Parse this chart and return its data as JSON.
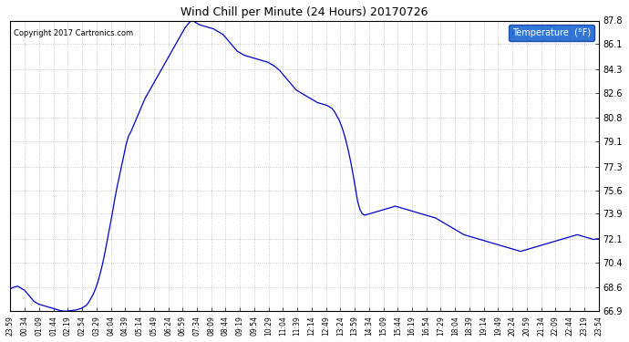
{
  "title": "Wind Chill per Minute (24 Hours) 20170726",
  "copyright_text": "Copyright 2017 Cartronics.com",
  "legend_label": "Temperature  (°F)",
  "line_color": "#0000cc",
  "bg_color": "#ffffff",
  "legend_bg": "#0055cc",
  "legend_fg": "#ffffff",
  "ylim": [
    66.9,
    87.8
  ],
  "yticks": [
    66.9,
    68.6,
    70.4,
    72.1,
    73.9,
    75.6,
    77.3,
    79.1,
    80.8,
    82.6,
    84.3,
    86.1,
    87.8
  ],
  "xtick_labels": [
    "23:59",
    "00:34",
    "01:09",
    "01:44",
    "02:19",
    "02:54",
    "03:29",
    "04:04",
    "04:39",
    "05:14",
    "05:49",
    "06:24",
    "06:59",
    "07:34",
    "08:09",
    "08:44",
    "09:19",
    "09:54",
    "10:29",
    "11:04",
    "11:39",
    "12:14",
    "12:49",
    "13:24",
    "13:59",
    "14:34",
    "15:09",
    "15:44",
    "16:19",
    "16:54",
    "17:29",
    "18:04",
    "18:39",
    "19:14",
    "19:49",
    "20:24",
    "20:59",
    "21:34",
    "22:09",
    "22:44",
    "23:19",
    "23:54"
  ],
  "data_profile": [
    68.5,
    68.6,
    68.65,
    68.7,
    68.6,
    68.5,
    68.4,
    68.2,
    68.0,
    67.8,
    67.6,
    67.5,
    67.4,
    67.35,
    67.3,
    67.25,
    67.2,
    67.15,
    67.1,
    67.05,
    67.0,
    66.95,
    66.92,
    66.9,
    66.91,
    66.93,
    66.95,
    66.97,
    67.0,
    67.05,
    67.1,
    67.2,
    67.3,
    67.5,
    67.8,
    68.1,
    68.5,
    69.0,
    69.6,
    70.3,
    71.1,
    72.0,
    72.9,
    73.8,
    74.8,
    75.7,
    76.5,
    77.3,
    78.1,
    78.9,
    79.5,
    79.8,
    80.2,
    80.6,
    81.0,
    81.4,
    81.8,
    82.2,
    82.5,
    82.8,
    83.1,
    83.4,
    83.7,
    84.0,
    84.3,
    84.6,
    84.9,
    85.2,
    85.5,
    85.8,
    86.1,
    86.4,
    86.7,
    87.0,
    87.3,
    87.5,
    87.7,
    87.8,
    87.7,
    87.6,
    87.5,
    87.45,
    87.4,
    87.35,
    87.3,
    87.25,
    87.2,
    87.1,
    87.0,
    86.9,
    86.8,
    86.6,
    86.4,
    86.2,
    86.0,
    85.8,
    85.6,
    85.5,
    85.4,
    85.3,
    85.25,
    85.2,
    85.15,
    85.1,
    85.05,
    85.0,
    84.95,
    84.9,
    84.85,
    84.8,
    84.7,
    84.6,
    84.5,
    84.35,
    84.2,
    84.0,
    83.8,
    83.6,
    83.4,
    83.2,
    83.0,
    82.8,
    82.7,
    82.6,
    82.5,
    82.4,
    82.3,
    82.2,
    82.1,
    82.0,
    81.9,
    81.85,
    81.8,
    81.75,
    81.7,
    81.6,
    81.5,
    81.3,
    81.0,
    80.7,
    80.3,
    79.8,
    79.2,
    78.5,
    77.7,
    76.8,
    75.8,
    74.8,
    74.2,
    73.9,
    73.8,
    73.85,
    73.9,
    73.95,
    74.0,
    74.05,
    74.1,
    74.15,
    74.2,
    74.25,
    74.3,
    74.35,
    74.4,
    74.45,
    74.4,
    74.35,
    74.3,
    74.25,
    74.2,
    74.15,
    74.1,
    74.05,
    74.0,
    73.95,
    73.9,
    73.85,
    73.8,
    73.75,
    73.7,
    73.65,
    73.6,
    73.5,
    73.4,
    73.3,
    73.2,
    73.1,
    73.0,
    72.9,
    72.8,
    72.7,
    72.6,
    72.5,
    72.4,
    72.35,
    72.3,
    72.25,
    72.2,
    72.15,
    72.1,
    72.05,
    72.0,
    71.95,
    71.9,
    71.85,
    71.8,
    71.75,
    71.7,
    71.65,
    71.6,
    71.55,
    71.5,
    71.45,
    71.4,
    71.35,
    71.3,
    71.25,
    71.2,
    71.25,
    71.3,
    71.35,
    71.4,
    71.45,
    71.5,
    71.55,
    71.6,
    71.65,
    71.7,
    71.75,
    71.8,
    71.85,
    71.9,
    71.95,
    72.0,
    72.05,
    72.1,
    72.15,
    72.2,
    72.25,
    72.3,
    72.35,
    72.4,
    72.35,
    72.3,
    72.25,
    72.2,
    72.15,
    72.1,
    72.05,
    72.1,
    72.1
  ]
}
